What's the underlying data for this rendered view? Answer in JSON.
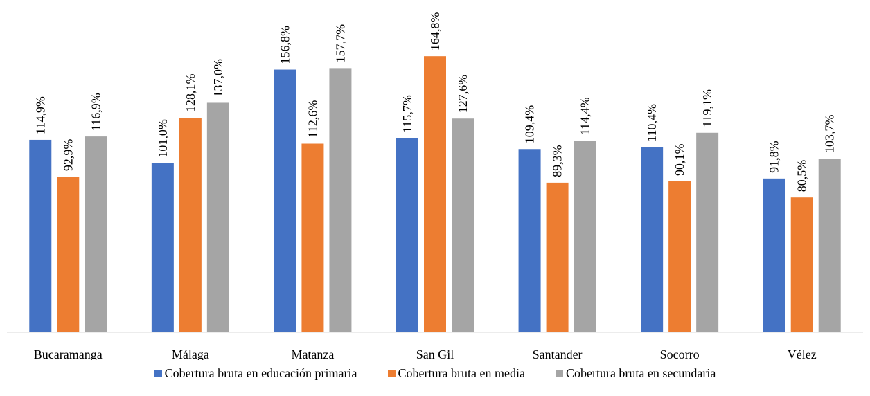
{
  "chart_data": {
    "type": "bar",
    "title": "",
    "xlabel": "",
    "ylabel": "",
    "ylim": [
      0,
      170
    ],
    "grid": false,
    "legend_position": "bottom",
    "categories": [
      "Bucaramanga",
      "Málaga",
      "Matanza",
      "San Gil",
      "Santander",
      "Socorro",
      "Vélez"
    ],
    "series": [
      {
        "name": "Cobertura bruta en educación primaria",
        "color": "#4472C4",
        "values": [
          114.9,
          101.0,
          156.8,
          115.7,
          109.4,
          110.4,
          91.8
        ],
        "labels": [
          "114,9%",
          "101,0%",
          "156,8%",
          "115,7%",
          "109,4%",
          "110,4%",
          "91,8%"
        ]
      },
      {
        "name": "Cobertura bruta en media",
        "color": "#ED7D31",
        "values": [
          92.9,
          128.1,
          112.6,
          164.8,
          89.3,
          90.1,
          80.5
        ],
        "labels": [
          "92,9%",
          "128,1%",
          "112,6%",
          "164,8%",
          "89,3%",
          "90,1%",
          "80,5%"
        ]
      },
      {
        "name": "Cobertura bruta en secundaria",
        "color": "#A5A5A5",
        "values": [
          116.9,
          137.0,
          157.7,
          127.6,
          114.4,
          119.1,
          103.7
        ],
        "labels": [
          "116,9%",
          "137,0%",
          "157,7%",
          "127,6%",
          "114,4%",
          "119,1%",
          "103,7%"
        ]
      }
    ]
  }
}
